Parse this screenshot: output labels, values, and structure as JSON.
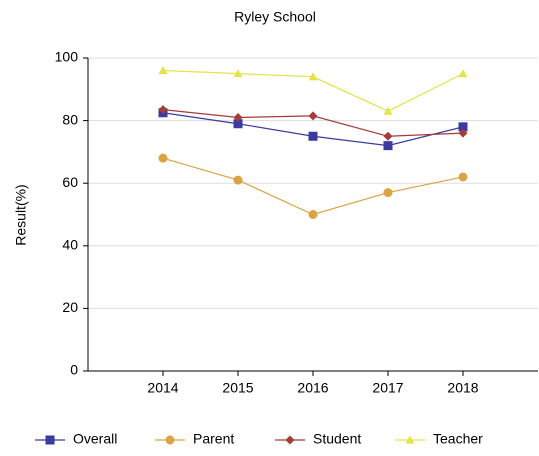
{
  "chart_data": {
    "type": "line",
    "title": "Ryley School",
    "y_label": "Result(%)",
    "categories": [
      "2014",
      "2015",
      "2016",
      "2017",
      "2018"
    ],
    "series": [
      {
        "name": "Overall",
        "color": "#3a3aa0",
        "marker": "square",
        "values": [
          82.5,
          79,
          75,
          72,
          78
        ]
      },
      {
        "name": "Parent",
        "color": "#d9a441",
        "marker": "circle",
        "values": [
          68,
          61,
          50,
          57,
          62
        ]
      },
      {
        "name": "Student",
        "color": "#a53b3b",
        "marker": "diamond",
        "values": [
          83.5,
          81,
          81.5,
          75,
          76
        ]
      },
      {
        "name": "Teacher",
        "color": "#e3e34a",
        "marker": "triangle",
        "values": [
          96,
          95,
          94,
          83,
          95
        ]
      }
    ],
    "ylim": [
      0,
      100
    ],
    "yticks": [
      0,
      20,
      40,
      60,
      80,
      100
    ],
    "grid": true,
    "legend": "bottom"
  }
}
